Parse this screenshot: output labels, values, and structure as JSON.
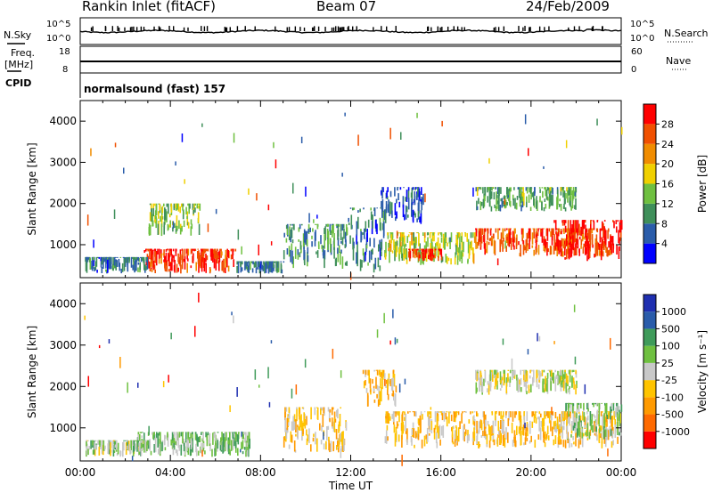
{
  "header": {
    "station": "Rankin Inlet (fitACF)",
    "beam": "Beam 07",
    "date": "24/Feb/2009"
  },
  "aux": {
    "nsky_label": "N.Sky",
    "nsky_ticks": [
      "10^5",
      "10^0"
    ],
    "nsearch_label": "N.Search",
    "nsearch_ticks": [
      "10^5",
      "10^0"
    ],
    "freq_label": "Freq.",
    "freq_unit": "[MHz]",
    "freq_ticks": [
      "18",
      "8"
    ],
    "nave_label": "Nave",
    "nave_ticks": [
      "60",
      "0"
    ],
    "cpid_label": "CPID",
    "cpid_value": "normalsound (fast) 157"
  },
  "colors": {
    "power": [
      "#0000ff",
      "#2a5caa",
      "#3f8f5a",
      "#6fc040",
      "#f0d000",
      "#f08c00",
      "#f05000",
      "#ff0000"
    ],
    "velocity": [
      "#ff0000",
      "#ff6a00",
      "#ff9a00",
      "#ffc400",
      "#c8c8c8",
      "#6fc040",
      "#3f9b5a",
      "#2a5caa",
      "#1f2fb0"
    ]
  },
  "chart_data": [
    {
      "type": "heatmap",
      "quantity": "power",
      "xlabel": "",
      "ylabel": "Slant Range [km]",
      "yticks": [
        "1000",
        "2000",
        "3000",
        "4000"
      ],
      "ylim": [
        200,
        4500
      ],
      "xlim_hours": [
        0,
        24
      ],
      "colorbar_label": "Power [dB]",
      "colorbar_ticks": [
        "4",
        "8",
        "12",
        "16",
        "20",
        "24",
        "28"
      ],
      "colorbar_range": [
        0,
        32
      ],
      "regions": [
        {
          "t": [
            2.8,
            6.9
          ],
          "r": [
            300,
            900
          ],
          "value": 28
        },
        {
          "t": [
            0.2,
            3.0
          ],
          "r": [
            300,
            700
          ],
          "value": 8
        },
        {
          "t": [
            6.9,
            9.0
          ],
          "r": [
            300,
            600
          ],
          "value": 8
        },
        {
          "t": [
            9.0,
            11.8
          ],
          "r": [
            400,
            1500
          ],
          "value": 10
        },
        {
          "t": [
            11.8,
            13.5
          ],
          "r": [
            300,
            1900
          ],
          "value": 8
        },
        {
          "t": [
            13.3,
            15.2
          ],
          "r": [
            1500,
            2400
          ],
          "value": 6
        },
        {
          "t": [
            13.5,
            17.5
          ],
          "r": [
            500,
            1300
          ],
          "value": 16
        },
        {
          "t": [
            14.5,
            16.0
          ],
          "r": [
            600,
            900
          ],
          "value": 28
        },
        {
          "t": [
            17.5,
            23.5
          ],
          "r": [
            700,
            1400
          ],
          "value": 26
        },
        {
          "t": [
            21.0,
            24.0
          ],
          "r": [
            600,
            1600
          ],
          "value": 30
        },
        {
          "t": [
            17.5,
            22.0
          ],
          "r": [
            1800,
            2400
          ],
          "value": 12
        },
        {
          "t": [
            3.0,
            5.3
          ],
          "r": [
            1200,
            2000
          ],
          "value": 14
        }
      ]
    },
    {
      "type": "heatmap",
      "quantity": "velocity",
      "xlabel": "Time UT",
      "ylabel": "Slant Range [km]",
      "yticks": [
        "1000",
        "2000",
        "3000",
        "4000"
      ],
      "ylim": [
        200,
        4500
      ],
      "xlim_hours": [
        0,
        24
      ],
      "xticks": [
        "00:00",
        "04:00",
        "08:00",
        "12:00",
        "16:00",
        "20:00",
        "00:00"
      ],
      "colorbar_label": "Velocity [m s⁻¹]",
      "colorbar_ticks": [
        "-1000",
        "-500",
        "-100",
        "-25",
        "25",
        "100",
        "500",
        "1000"
      ],
      "colorbar_range": [
        -1500,
        1500
      ],
      "regions": [
        {
          "t": [
            2.5,
            7.5
          ],
          "r": [
            300,
            900
          ],
          "value": 300
        },
        {
          "t": [
            0.2,
            3.0
          ],
          "r": [
            300,
            700
          ],
          "value": 200
        },
        {
          "t": [
            9.0,
            11.8
          ],
          "r": [
            400,
            1500
          ],
          "value": -300
        },
        {
          "t": [
            12.5,
            14.0
          ],
          "r": [
            1500,
            2400
          ],
          "value": -400
        },
        {
          "t": [
            13.5,
            24.0
          ],
          "r": [
            500,
            1400
          ],
          "value": -300
        },
        {
          "t": [
            17.5,
            22.0
          ],
          "r": [
            1800,
            2400
          ],
          "value": 0
        },
        {
          "t": [
            21.5,
            24.0
          ],
          "r": [
            700,
            1600
          ],
          "value": 300
        }
      ]
    }
  ]
}
